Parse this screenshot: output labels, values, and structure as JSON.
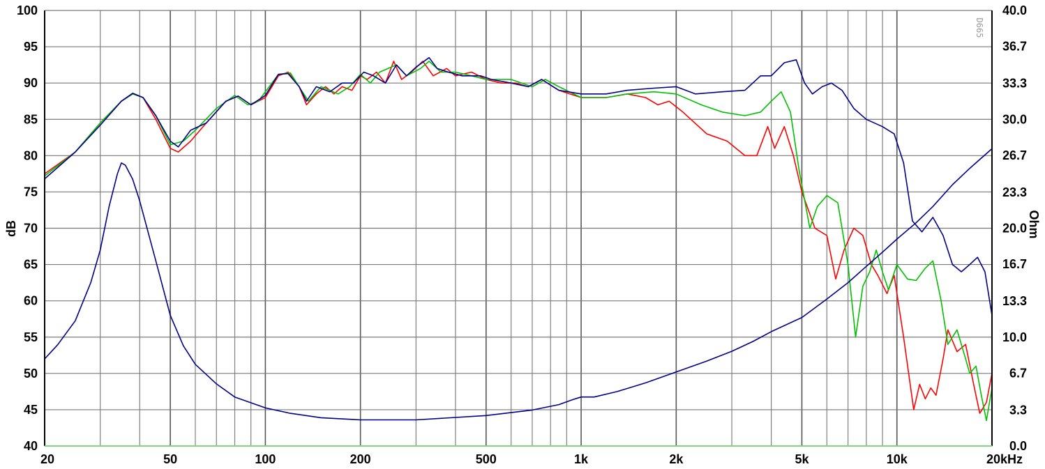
{
  "chart_data": {
    "type": "line",
    "x_scale": "log",
    "xlim": [
      20,
      20000
    ],
    "ylim_left": [
      40,
      100
    ],
    "ylim_right": [
      0,
      40
    ],
    "ylabel": "dB",
    "ylabel_right": "Ohm",
    "watermark": "D665",
    "grid": true,
    "x_ticks": [
      {
        "value": 20,
        "label": "20"
      },
      {
        "value": 50,
        "label": "50"
      },
      {
        "value": 100,
        "label": "100"
      },
      {
        "value": 200,
        "label": "200"
      },
      {
        "value": 500,
        "label": "500"
      },
      {
        "value": 1000,
        "label": "1k"
      },
      {
        "value": 2000,
        "label": "2k"
      },
      {
        "value": 5000,
        "label": "5k"
      },
      {
        "value": 10000,
        "label": "10k"
      },
      {
        "value": 20000,
        "label": "20kHz"
      }
    ],
    "y_ticks_left": [
      {
        "value": 100,
        "label": "100"
      },
      {
        "value": 95,
        "label": "95"
      },
      {
        "value": 90,
        "label": "90"
      },
      {
        "value": 85,
        "label": "85"
      },
      {
        "value": 80,
        "label": "80"
      },
      {
        "value": 75,
        "label": "75"
      },
      {
        "value": 70,
        "label": "70"
      },
      {
        "value": 65,
        "label": "65"
      },
      {
        "value": 60,
        "label": "60"
      },
      {
        "value": 55,
        "label": "55"
      },
      {
        "value": 50,
        "label": "50"
      },
      {
        "value": 45,
        "label": "45"
      },
      {
        "value": 40,
        "label": "40"
      }
    ],
    "y_ticks_right": [
      {
        "value": 40.0,
        "label": "40.0"
      },
      {
        "value": 36.7,
        "label": "36.7"
      },
      {
        "value": 33.3,
        "label": "33.3"
      },
      {
        "value": 30.0,
        "label": "30.0"
      },
      {
        "value": 26.7,
        "label": "26.7"
      },
      {
        "value": 23.3,
        "label": "23.3"
      },
      {
        "value": 20.0,
        "label": "20.0"
      },
      {
        "value": 16.7,
        "label": "16.7"
      },
      {
        "value": 13.3,
        "label": "13.3"
      },
      {
        "value": 10.0,
        "label": "10.0"
      },
      {
        "value": 6.7,
        "label": "6.7"
      },
      {
        "value": 3.3,
        "label": "3.3"
      },
      {
        "value": 0.0,
        "label": "0.0"
      }
    ],
    "series": [
      {
        "color": "#ff0000",
        "axis": "left",
        "points": [
          [
            20,
            77.5
          ],
          [
            25,
            80.5
          ],
          [
            30,
            84.5
          ],
          [
            35,
            87.5
          ],
          [
            38,
            88.5
          ],
          [
            41,
            88
          ],
          [
            45,
            85
          ],
          [
            50,
            81
          ],
          [
            53,
            80.5
          ],
          [
            58,
            82
          ],
          [
            65,
            84.5
          ],
          [
            75,
            87.5
          ],
          [
            82,
            88.2
          ],
          [
            90,
            87
          ],
          [
            100,
            88
          ],
          [
            110,
            91
          ],
          [
            118,
            91.5
          ],
          [
            128,
            89.5
          ],
          [
            135,
            87
          ],
          [
            145,
            88.5
          ],
          [
            155,
            89.5
          ],
          [
            165,
            88.5
          ],
          [
            175,
            89.5
          ],
          [
            188,
            89
          ],
          [
            200,
            91
          ],
          [
            210,
            90.5
          ],
          [
            225,
            91.5
          ],
          [
            240,
            90
          ],
          [
            255,
            93
          ],
          [
            270,
            90.5
          ],
          [
            290,
            91.5
          ],
          [
            315,
            93
          ],
          [
            340,
            91
          ],
          [
            375,
            92
          ],
          [
            400,
            91
          ],
          [
            450,
            91.5
          ],
          [
            500,
            90.5
          ],
          [
            560,
            90
          ],
          [
            620,
            90
          ],
          [
            680,
            89.5
          ],
          [
            750,
            90.5
          ],
          [
            850,
            89
          ],
          [
            1000,
            88
          ],
          [
            1200,
            88
          ],
          [
            1400,
            88.5
          ],
          [
            1600,
            88
          ],
          [
            1750,
            87
          ],
          [
            1900,
            87.5
          ],
          [
            2100,
            86
          ],
          [
            2500,
            83
          ],
          [
            2900,
            82
          ],
          [
            3300,
            80
          ],
          [
            3600,
            80
          ],
          [
            3900,
            84
          ],
          [
            4100,
            81
          ],
          [
            4400,
            84
          ],
          [
            4700,
            80
          ],
          [
            5000,
            75
          ],
          [
            5500,
            70
          ],
          [
            6000,
            69
          ],
          [
            6400,
            63
          ],
          [
            6800,
            67
          ],
          [
            7300,
            70
          ],
          [
            7800,
            69
          ],
          [
            8300,
            65
          ],
          [
            8700,
            63.5
          ],
          [
            9300,
            61
          ],
          [
            9800,
            63.5
          ],
          [
            10500,
            55
          ],
          [
            11300,
            45
          ],
          [
            11800,
            48.5
          ],
          [
            12300,
            46.5
          ],
          [
            12800,
            48
          ],
          [
            13300,
            47
          ],
          [
            14000,
            52
          ],
          [
            14500,
            56
          ],
          [
            15500,
            53
          ],
          [
            16500,
            54
          ],
          [
            17500,
            48.5
          ],
          [
            18300,
            44.5
          ],
          [
            19200,
            46
          ],
          [
            20000,
            50
          ]
        ]
      },
      {
        "color": "#00c000",
        "axis": "left",
        "points": [
          [
            20,
            77.2
          ],
          [
            25,
            80.5
          ],
          [
            30,
            84.5
          ],
          [
            35,
            87.5
          ],
          [
            38,
            88.5
          ],
          [
            41,
            88
          ],
          [
            45,
            85.5
          ],
          [
            50,
            81.5
          ],
          [
            55,
            82
          ],
          [
            60,
            83.5
          ],
          [
            70,
            86.5
          ],
          [
            80,
            88.3
          ],
          [
            88,
            87
          ],
          [
            95,
            87.5
          ],
          [
            110,
            91.2
          ],
          [
            120,
            91.4
          ],
          [
            130,
            89
          ],
          [
            137,
            87.5
          ],
          [
            150,
            89.5
          ],
          [
            170,
            88.5
          ],
          [
            185,
            89.5
          ],
          [
            200,
            91.2
          ],
          [
            215,
            90
          ],
          [
            230,
            91.5
          ],
          [
            260,
            92.5
          ],
          [
            280,
            91
          ],
          [
            310,
            92
          ],
          [
            330,
            93
          ],
          [
            360,
            91.5
          ],
          [
            400,
            91.5
          ],
          [
            450,
            91
          ],
          [
            500,
            90.5
          ],
          [
            600,
            90.5
          ],
          [
            700,
            89.5
          ],
          [
            770,
            90.5
          ],
          [
            850,
            89.5
          ],
          [
            1000,
            88
          ],
          [
            1200,
            88
          ],
          [
            1400,
            88.5
          ],
          [
            1700,
            88.8
          ],
          [
            2000,
            88.5
          ],
          [
            2400,
            87
          ],
          [
            2800,
            86
          ],
          [
            3300,
            85.5
          ],
          [
            3700,
            86
          ],
          [
            4000,
            87.5
          ],
          [
            4300,
            88.8
          ],
          [
            4600,
            86
          ],
          [
            4900,
            78
          ],
          [
            5300,
            70
          ],
          [
            5600,
            73
          ],
          [
            6000,
            74.5
          ],
          [
            6500,
            73.5
          ],
          [
            7000,
            65
          ],
          [
            7400,
            55
          ],
          [
            7800,
            62
          ],
          [
            8200,
            64
          ],
          [
            8600,
            67
          ],
          [
            9000,
            64
          ],
          [
            9400,
            61.5
          ],
          [
            10000,
            65
          ],
          [
            10800,
            63
          ],
          [
            11500,
            62.8
          ],
          [
            12300,
            64.5
          ],
          [
            13000,
            65.5
          ],
          [
            13800,
            60
          ],
          [
            14500,
            54
          ],
          [
            15500,
            56
          ],
          [
            16500,
            52
          ],
          [
            17000,
            50
          ],
          [
            17800,
            51
          ],
          [
            18500,
            47
          ],
          [
            19200,
            43.5
          ],
          [
            20000,
            48
          ]
        ]
      },
      {
        "color": "#00008b",
        "axis": "left",
        "points": [
          [
            20,
            76.8
          ],
          [
            25,
            80.5
          ],
          [
            30,
            84.2
          ],
          [
            35,
            87.5
          ],
          [
            38,
            88.6
          ],
          [
            41,
            88
          ],
          [
            45,
            85.5
          ],
          [
            50,
            82
          ],
          [
            53,
            81.2
          ],
          [
            58,
            83.5
          ],
          [
            65,
            84.5
          ],
          [
            75,
            87.5
          ],
          [
            82,
            88.2
          ],
          [
            90,
            87
          ],
          [
            100,
            88.3
          ],
          [
            110,
            91.2
          ],
          [
            118,
            91.3
          ],
          [
            128,
            89.5
          ],
          [
            135,
            87.5
          ],
          [
            145,
            89.5
          ],
          [
            160,
            88.8
          ],
          [
            175,
            90
          ],
          [
            190,
            90
          ],
          [
            205,
            91.5
          ],
          [
            220,
            91
          ],
          [
            240,
            90
          ],
          [
            260,
            92.5
          ],
          [
            280,
            91
          ],
          [
            300,
            92.2
          ],
          [
            330,
            93.5
          ],
          [
            350,
            92
          ],
          [
            380,
            91.5
          ],
          [
            420,
            91
          ],
          [
            480,
            91
          ],
          [
            520,
            90.5
          ],
          [
            600,
            90
          ],
          [
            680,
            89.5
          ],
          [
            750,
            90.5
          ],
          [
            850,
            89
          ],
          [
            1000,
            88.5
          ],
          [
            1200,
            88.5
          ],
          [
            1400,
            89
          ],
          [
            1700,
            89.3
          ],
          [
            2000,
            89.5
          ],
          [
            2300,
            88.5
          ],
          [
            2800,
            88.8
          ],
          [
            3300,
            89
          ],
          [
            3700,
            91
          ],
          [
            4000,
            91
          ],
          [
            4400,
            92.8
          ],
          [
            4800,
            93.2
          ],
          [
            5100,
            90
          ],
          [
            5400,
            88.5
          ],
          [
            5800,
            89.5
          ],
          [
            6200,
            90
          ],
          [
            6700,
            89
          ],
          [
            7300,
            86.5
          ],
          [
            8000,
            85
          ],
          [
            9000,
            84
          ],
          [
            9800,
            83
          ],
          [
            10500,
            79
          ],
          [
            11200,
            71
          ],
          [
            12000,
            69.5
          ],
          [
            13000,
            71.5
          ],
          [
            14000,
            69
          ],
          [
            15000,
            65
          ],
          [
            16000,
            64
          ],
          [
            17000,
            65
          ],
          [
            18000,
            66
          ],
          [
            19000,
            64
          ],
          [
            20000,
            58
          ]
        ]
      },
      {
        "color": "#00008b",
        "axis": "right",
        "points": [
          [
            20,
            8.0
          ],
          [
            22,
            9.3
          ],
          [
            25,
            11.5
          ],
          [
            28,
            15.0
          ],
          [
            30,
            18.0
          ],
          [
            32,
            22.0
          ],
          [
            34,
            25.0
          ],
          [
            35,
            26.0
          ],
          [
            36,
            25.8
          ],
          [
            38,
            24.5
          ],
          [
            40,
            22.5
          ],
          [
            45,
            17.0
          ],
          [
            50,
            12.0
          ],
          [
            55,
            9.2
          ],
          [
            60,
            7.5
          ],
          [
            70,
            5.7
          ],
          [
            80,
            4.5
          ],
          [
            100,
            3.5
          ],
          [
            120,
            3.0
          ],
          [
            150,
            2.6
          ],
          [
            200,
            2.4
          ],
          [
            300,
            2.4
          ],
          [
            500,
            2.8
          ],
          [
            700,
            3.3
          ],
          [
            850,
            3.8
          ],
          [
            950,
            4.3
          ],
          [
            1000,
            4.5
          ],
          [
            1100,
            4.5
          ],
          [
            1300,
            5.0
          ],
          [
            1600,
            5.8
          ],
          [
            2000,
            6.8
          ],
          [
            2500,
            7.8
          ],
          [
            3000,
            8.7
          ],
          [
            3500,
            9.6
          ],
          [
            4000,
            10.5
          ],
          [
            5000,
            11.8
          ],
          [
            6000,
            13.5
          ],
          [
            7000,
            15.0
          ],
          [
            8000,
            16.5
          ],
          [
            9000,
            17.8
          ],
          [
            10000,
            19.0
          ],
          [
            11500,
            20.5
          ],
          [
            13000,
            22.0
          ],
          [
            15000,
            24.0
          ],
          [
            17000,
            25.5
          ],
          [
            20000,
            27.3
          ]
        ]
      }
    ]
  }
}
